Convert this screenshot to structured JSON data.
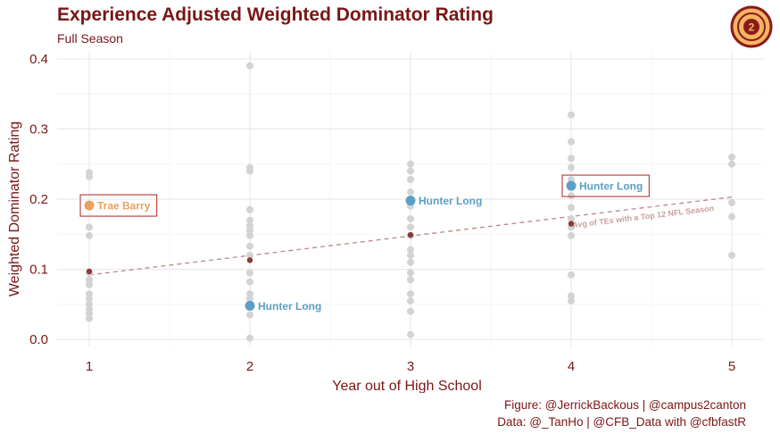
{
  "header": {
    "title": "Experience Adjusted Weighted Dominator Rating",
    "subtitle": "Full Season"
  },
  "caption": {
    "figure": "Figure: @JerrickBackous | @campus2canton",
    "data": "Data: @_TanHo | @CFB_Data with @cfbfastR"
  },
  "colors": {
    "title": "#7a1616",
    "background_point": "#d3d3d3",
    "average_point": "#8b3a3a",
    "trend_line": "#c08585",
    "trae_barry": "#e8a15f",
    "hunter_long": "#5d9fc4",
    "label_box": "#b22222",
    "logo_ring": "#8b1a1a",
    "logo_fill": "#f3b562"
  },
  "chart_data": {
    "type": "scatter",
    "xlabel": "Year out of High School",
    "ylabel": "Weighted Dominator Rating",
    "xlim": [
      0.8,
      5.2
    ],
    "ylim": [
      -0.01,
      0.41
    ],
    "x_ticks": [
      1,
      2,
      3,
      4,
      5
    ],
    "y_ticks": [
      0.0,
      0.1,
      0.2,
      0.3,
      0.4
    ],
    "y_tick_labels": [
      "0.0",
      "0.1",
      "0.2",
      "0.3",
      "0.4"
    ],
    "grid": true,
    "series": [
      {
        "points": [
          [
            1,
            0.238
          ],
          [
            1,
            0.232
          ],
          [
            1,
            0.16
          ],
          [
            1,
            0.148
          ],
          [
            1,
            0.095
          ],
          [
            1,
            0.085
          ],
          [
            1,
            0.078
          ],
          [
            1,
            0.065
          ],
          [
            1,
            0.058
          ],
          [
            1,
            0.05
          ],
          [
            1,
            0.043
          ],
          [
            1,
            0.037
          ],
          [
            1,
            0.03
          ],
          [
            2,
            0.39
          ],
          [
            2,
            0.245
          ],
          [
            2,
            0.24
          ],
          [
            2,
            0.185
          ],
          [
            2,
            0.17
          ],
          [
            2,
            0.162
          ],
          [
            2,
            0.155
          ],
          [
            2,
            0.148
          ],
          [
            2,
            0.133
          ],
          [
            2,
            0.12
          ],
          [
            2,
            0.095
          ],
          [
            2,
            0.082
          ],
          [
            2,
            0.065
          ],
          [
            2,
            0.058
          ],
          [
            2,
            0.05
          ],
          [
            2,
            0.035
          ],
          [
            2,
            0.002
          ],
          [
            3,
            0.25
          ],
          [
            3,
            0.24
          ],
          [
            3,
            0.228
          ],
          [
            3,
            0.21
          ],
          [
            3,
            0.19
          ],
          [
            3,
            0.172
          ],
          [
            3,
            0.16
          ],
          [
            3,
            0.148
          ],
          [
            3,
            0.128
          ],
          [
            3,
            0.12
          ],
          [
            3,
            0.11
          ],
          [
            3,
            0.095
          ],
          [
            3,
            0.085
          ],
          [
            3,
            0.065
          ],
          [
            3,
            0.055
          ],
          [
            3,
            0.04
          ],
          [
            3,
            0.007
          ],
          [
            4,
            0.32
          ],
          [
            4,
            0.282
          ],
          [
            4,
            0.258
          ],
          [
            4,
            0.245
          ],
          [
            4,
            0.228
          ],
          [
            4,
            0.205
          ],
          [
            4,
            0.188
          ],
          [
            4,
            0.172
          ],
          [
            4,
            0.16
          ],
          [
            4,
            0.148
          ],
          [
            4,
            0.092
          ],
          [
            4,
            0.062
          ],
          [
            4,
            0.055
          ],
          [
            5,
            0.26
          ],
          [
            5,
            0.25
          ],
          [
            5,
            0.195
          ],
          [
            5,
            0.175
          ],
          [
            5,
            0.12
          ]
        ]
      },
      {
        "points": [
          [
            1,
            0.097
          ],
          [
            2,
            0.113
          ],
          [
            3,
            0.149
          ],
          [
            4,
            0.165
          ]
        ]
      }
    ],
    "trend_line": {
      "x": [
        1,
        5
      ],
      "y": [
        0.092,
        0.203
      ]
    },
    "annotation": "Avg of TEs with a Top 12 NFL Season",
    "highlights": [
      {
        "name": "Trae Barry",
        "x": 1,
        "y": 0.191,
        "boxed": true
      },
      {
        "name": "Hunter Long",
        "x": 2,
        "y": 0.048,
        "boxed": false
      },
      {
        "name": "Hunter Long",
        "x": 3,
        "y": 0.198,
        "boxed": false
      },
      {
        "name": "Hunter Long",
        "x": 4,
        "y": 0.219,
        "boxed": true
      }
    ]
  }
}
